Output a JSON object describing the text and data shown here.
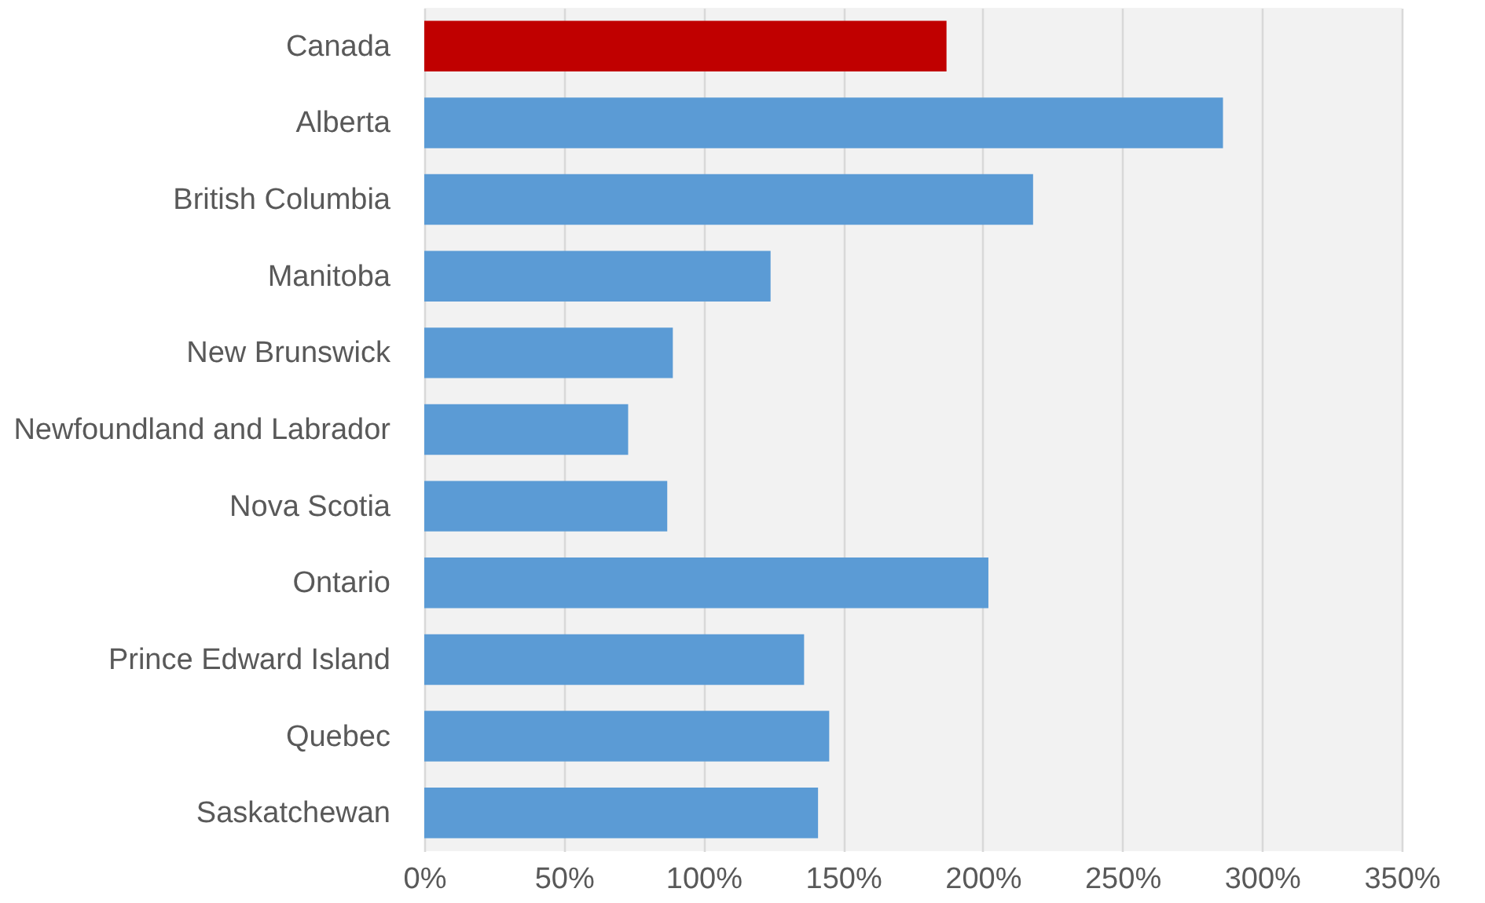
{
  "chart_data": {
    "type": "bar",
    "orientation": "horizontal",
    "categories": [
      "Canada",
      "Alberta",
      "British Columbia",
      "Manitoba",
      "New Brunswick",
      "Newfoundland and Labrador",
      "Nova Scotia",
      "Ontario",
      "Prince Edward Island",
      "Quebec",
      "Saskatchewan"
    ],
    "values": [
      187,
      286,
      218,
      124,
      89,
      73,
      87,
      202,
      136,
      145,
      141
    ],
    "colors": [
      "#c00000",
      "#5b9bd5",
      "#5b9bd5",
      "#5b9bd5",
      "#5b9bd5",
      "#5b9bd5",
      "#5b9bd5",
      "#5b9bd5",
      "#5b9bd5",
      "#5b9bd5",
      "#5b9bd5"
    ],
    "xlim": [
      0,
      350
    ],
    "xticks": [
      {
        "value": 0,
        "label": "0%"
      },
      {
        "value": 50,
        "label": "50%"
      },
      {
        "value": 100,
        "label": "100%"
      },
      {
        "value": 150,
        "label": "150%"
      },
      {
        "value": 200,
        "label": "200%"
      },
      {
        "value": 250,
        "label": "250%"
      },
      {
        "value": 300,
        "label": "300%"
      },
      {
        "value": 350,
        "label": "350%"
      }
    ],
    "grid": "x"
  }
}
